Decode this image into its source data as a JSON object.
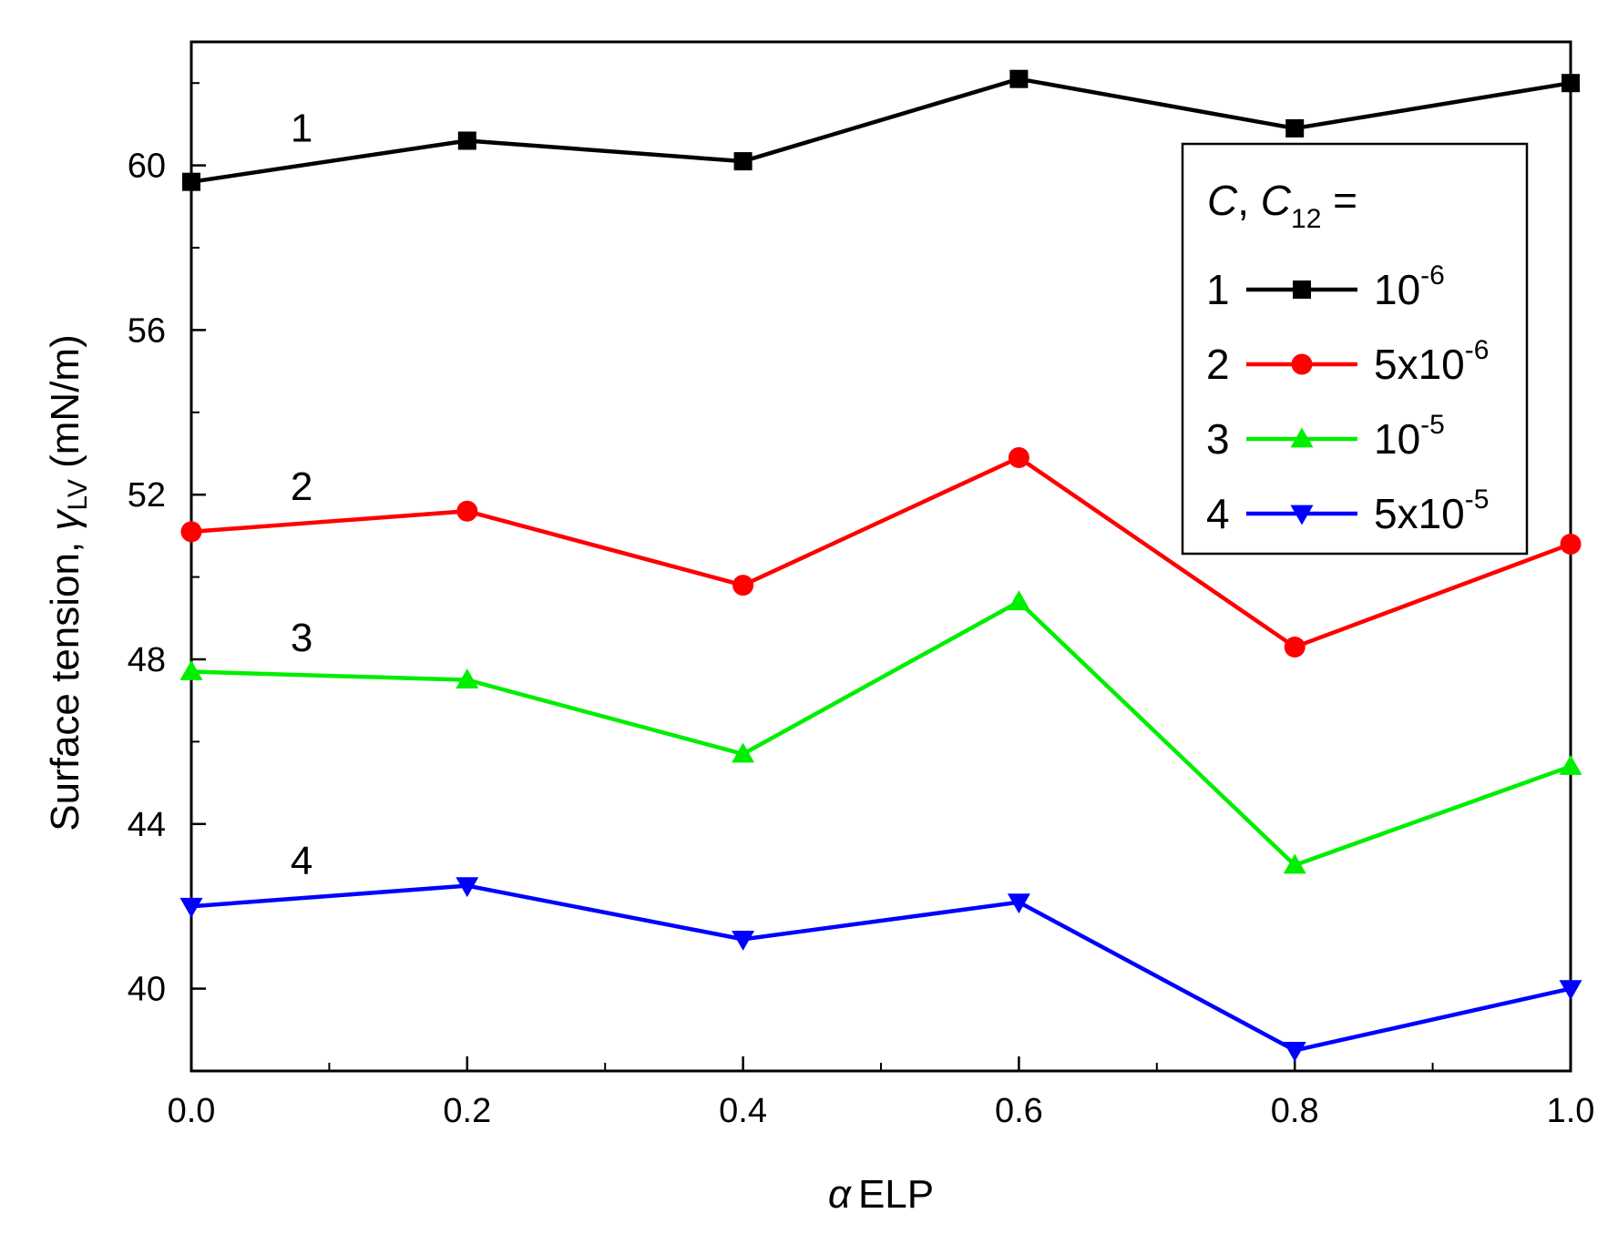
{
  "chart_data": {
    "type": "line",
    "title": "",
    "xlabel": {
      "symbol": "α",
      "text": "ELP"
    },
    "ylabel": {
      "text": "Surface tension, ",
      "symbol": "γ",
      "subscript": "LV",
      "unit": " (mN/m)"
    },
    "xlim": [
      0.0,
      1.0
    ],
    "ylim": [
      38.0,
      63.0
    ],
    "x_ticks": [
      "0.0",
      "0.2",
      "0.4",
      "0.6",
      "0.8",
      "1.0"
    ],
    "y_ticks": [
      "40",
      "44",
      "48",
      "52",
      "56",
      "60"
    ],
    "x": [
      0.0,
      0.2,
      0.4,
      0.6,
      0.8,
      1.0
    ],
    "grid": false,
    "legend": {
      "placement": "top-right",
      "title_c": "C",
      "title_sep": ", ",
      "title_c12": "C",
      "title_c12_sub": "12",
      "title_eq": " ="
    },
    "series": [
      {
        "name": "1",
        "label": "1",
        "conc_base": "10",
        "conc_exp": "-6",
        "color": "#000000",
        "marker": "square",
        "values": [
          59.6,
          60.6,
          60.1,
          62.1,
          60.9,
          62.0
        ]
      },
      {
        "name": "2",
        "label": "2",
        "conc_base": "5x10",
        "conc_exp": "-6",
        "color": "#ff0000",
        "marker": "circle",
        "values": [
          51.1,
          51.6,
          49.8,
          52.9,
          48.3,
          50.8
        ]
      },
      {
        "name": "3",
        "label": "3",
        "conc_base": "10",
        "conc_exp": "-5",
        "color": "#00ee00",
        "marker": "triangle-up",
        "values": [
          47.7,
          47.5,
          45.7,
          49.4,
          43.0,
          45.4
        ]
      },
      {
        "name": "4",
        "label": "4",
        "conc_base": "5x10",
        "conc_exp": "-5",
        "color": "#0000ff",
        "marker": "triangle-down",
        "values": [
          42.0,
          42.5,
          41.2,
          42.1,
          38.5,
          40.0
        ]
      }
    ]
  }
}
